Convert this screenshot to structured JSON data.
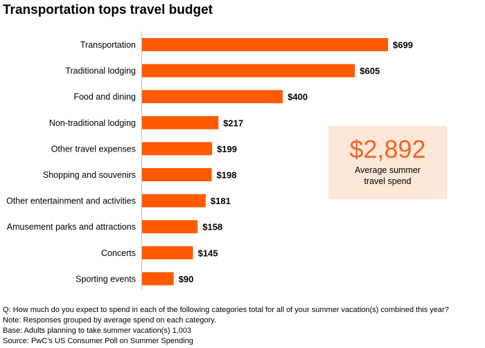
{
  "chart_data": {
    "type": "bar",
    "orientation": "horizontal",
    "title": "Transportation tops travel budget",
    "categories": [
      "Transportation",
      "Traditional lodging",
      "Food and dining",
      "Non-traditional lodging",
      "Other travel expenses",
      "Shopping and souvenirs",
      "Other entertainment and activities",
      "Amusement parks and attractions",
      "Concerts",
      "Sporting events"
    ],
    "values": [
      699,
      605,
      400,
      217,
      199,
      198,
      181,
      158,
      145,
      90
    ],
    "value_labels": [
      "$699",
      "$605",
      "$400",
      "$217",
      "$199",
      "$198",
      "$181",
      "$158",
      "$145",
      "$90"
    ],
    "bar_color": "#ff5a00",
    "xlim": [
      0,
      699
    ],
    "grid": false
  },
  "callout": {
    "value": "$2,892",
    "label": "Average summer travel spend",
    "background": "#fde7d9",
    "value_color": "#f26522"
  },
  "notes": {
    "question": "Q: How much do you expect to spend in each of the following categories total for all of your summer vacation(s) combined this year?",
    "note": "Note: Responses grouped by average spend on each category.",
    "base": "Base: Adults planning to take summer vacation(s) 1,003",
    "source": "Source: PwC’s US Consumer Poll on Summer Spending"
  }
}
